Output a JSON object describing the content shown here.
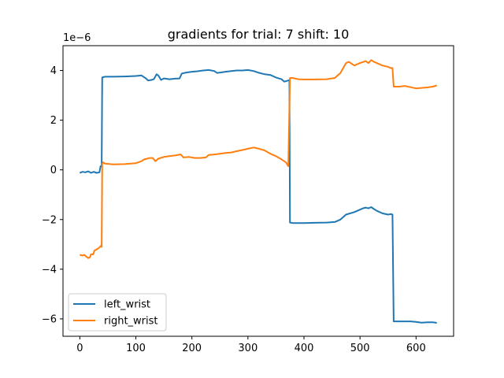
{
  "chart_data": {
    "type": "line",
    "title": "gradients for trial: 7 shift: 10",
    "xlabel": "",
    "ylabel": "",
    "y_scale_label": "1e−6",
    "xlim": [
      -30,
      667
    ],
    "ylim": [
      -6.7,
      5.0
    ],
    "xticks": [
      0,
      100,
      200,
      300,
      400,
      500,
      600
    ],
    "yticks": [
      -6,
      -4,
      -2,
      0,
      2,
      4
    ],
    "xtick_labels": [
      "0",
      "100",
      "200",
      "300",
      "400",
      "500",
      "600"
    ],
    "ytick_labels": [
      "−6",
      "−4",
      "−2",
      "0",
      "2",
      "4"
    ],
    "grid": false,
    "legend_position": "lower-left",
    "series": [
      {
        "name": "left_wrist",
        "color": "#1f77b4",
        "points": [
          [
            0,
            -0.12
          ],
          [
            5,
            -0.08
          ],
          [
            10,
            -0.1
          ],
          [
            15,
            -0.06
          ],
          [
            20,
            -0.12
          ],
          [
            25,
            -0.08
          ],
          [
            30,
            -0.12
          ],
          [
            35,
            -0.1
          ],
          [
            37,
            0.15
          ],
          [
            39,
            0.15
          ],
          [
            40,
            3.72
          ],
          [
            45,
            3.75
          ],
          [
            60,
            3.75
          ],
          [
            80,
            3.76
          ],
          [
            100,
            3.78
          ],
          [
            110,
            3.8
          ],
          [
            118,
            3.68
          ],
          [
            122,
            3.6
          ],
          [
            128,
            3.62
          ],
          [
            132,
            3.65
          ],
          [
            137,
            3.85
          ],
          [
            140,
            3.8
          ],
          [
            145,
            3.62
          ],
          [
            150,
            3.68
          ],
          [
            160,
            3.65
          ],
          [
            170,
            3.67
          ],
          [
            178,
            3.68
          ],
          [
            182,
            3.88
          ],
          [
            190,
            3.92
          ],
          [
            200,
            3.95
          ],
          [
            210,
            3.97
          ],
          [
            220,
            4.0
          ],
          [
            230,
            4.02
          ],
          [
            240,
            3.98
          ],
          [
            245,
            3.9
          ],
          [
            250,
            3.92
          ],
          [
            260,
            3.95
          ],
          [
            270,
            3.98
          ],
          [
            280,
            4.0
          ],
          [
            290,
            4.0
          ],
          [
            300,
            4.02
          ],
          [
            310,
            3.98
          ],
          [
            318,
            3.92
          ],
          [
            330,
            3.85
          ],
          [
            340,
            3.82
          ],
          [
            350,
            3.72
          ],
          [
            360,
            3.65
          ],
          [
            365,
            3.55
          ],
          [
            372,
            3.6
          ],
          [
            374,
            3.62
          ],
          [
            375,
            -2.12
          ],
          [
            380,
            -2.14
          ],
          [
            400,
            -2.14
          ],
          [
            420,
            -2.13
          ],
          [
            440,
            -2.12
          ],
          [
            455,
            -2.1
          ],
          [
            465,
            -2.0
          ],
          [
            475,
            -1.8
          ],
          [
            490,
            -1.7
          ],
          [
            500,
            -1.6
          ],
          [
            505,
            -1.55
          ],
          [
            510,
            -1.52
          ],
          [
            515,
            -1.55
          ],
          [
            520,
            -1.5
          ],
          [
            525,
            -1.58
          ],
          [
            530,
            -1.65
          ],
          [
            540,
            -1.75
          ],
          [
            550,
            -1.8
          ],
          [
            555,
            -1.78
          ],
          [
            558,
            -1.8
          ],
          [
            560,
            -6.1
          ],
          [
            570,
            -6.1
          ],
          [
            590,
            -6.1
          ],
          [
            600,
            -6.12
          ],
          [
            610,
            -6.15
          ],
          [
            620,
            -6.14
          ],
          [
            630,
            -6.14
          ],
          [
            637,
            -6.16
          ]
        ]
      },
      {
        "name": "right_wrist",
        "color": "#ff7f0e",
        "points": [
          [
            0,
            -3.42
          ],
          [
            5,
            -3.45
          ],
          [
            8,
            -3.42
          ],
          [
            12,
            -3.5
          ],
          [
            15,
            -3.55
          ],
          [
            18,
            -3.52
          ],
          [
            20,
            -3.4
          ],
          [
            24,
            -3.4
          ],
          [
            26,
            -3.25
          ],
          [
            30,
            -3.2
          ],
          [
            34,
            -3.15
          ],
          [
            38,
            -3.05
          ],
          [
            39,
            -3.1
          ],
          [
            40,
            0.25
          ],
          [
            42,
            0.3
          ],
          [
            45,
            0.25
          ],
          [
            60,
            0.22
          ],
          [
            80,
            0.23
          ],
          [
            100,
            0.27
          ],
          [
            110,
            0.35
          ],
          [
            115,
            0.42
          ],
          [
            125,
            0.48
          ],
          [
            130,
            0.48
          ],
          [
            135,
            0.35
          ],
          [
            140,
            0.45
          ],
          [
            150,
            0.52
          ],
          [
            160,
            0.55
          ],
          [
            170,
            0.58
          ],
          [
            180,
            0.62
          ],
          [
            185,
            0.5
          ],
          [
            195,
            0.52
          ],
          [
            205,
            0.48
          ],
          [
            215,
            0.48
          ],
          [
            225,
            0.5
          ],
          [
            230,
            0.6
          ],
          [
            240,
            0.62
          ],
          [
            250,
            0.65
          ],
          [
            260,
            0.68
          ],
          [
            270,
            0.7
          ],
          [
            280,
            0.75
          ],
          [
            290,
            0.8
          ],
          [
            300,
            0.85
          ],
          [
            310,
            0.9
          ],
          [
            320,
            0.85
          ],
          [
            330,
            0.78
          ],
          [
            340,
            0.65
          ],
          [
            350,
            0.55
          ],
          [
            360,
            0.42
          ],
          [
            368,
            0.3
          ],
          [
            372,
            0.15
          ],
          [
            375,
            3.7
          ],
          [
            380,
            3.7
          ],
          [
            390,
            3.65
          ],
          [
            400,
            3.64
          ],
          [
            420,
            3.64
          ],
          [
            440,
            3.65
          ],
          [
            455,
            3.7
          ],
          [
            465,
            3.9
          ],
          [
            470,
            4.1
          ],
          [
            475,
            4.3
          ],
          [
            480,
            4.35
          ],
          [
            490,
            4.2
          ],
          [
            500,
            4.3
          ],
          [
            510,
            4.38
          ],
          [
            515,
            4.3
          ],
          [
            520,
            4.42
          ],
          [
            525,
            4.35
          ],
          [
            530,
            4.3
          ],
          [
            540,
            4.2
          ],
          [
            550,
            4.15
          ],
          [
            555,
            4.1
          ],
          [
            558,
            4.1
          ],
          [
            560,
            3.35
          ],
          [
            570,
            3.35
          ],
          [
            580,
            3.38
          ],
          [
            590,
            3.33
          ],
          [
            600,
            3.28
          ],
          [
            610,
            3.3
          ],
          [
            620,
            3.32
          ],
          [
            630,
            3.35
          ],
          [
            637,
            3.4
          ]
        ]
      }
    ]
  }
}
